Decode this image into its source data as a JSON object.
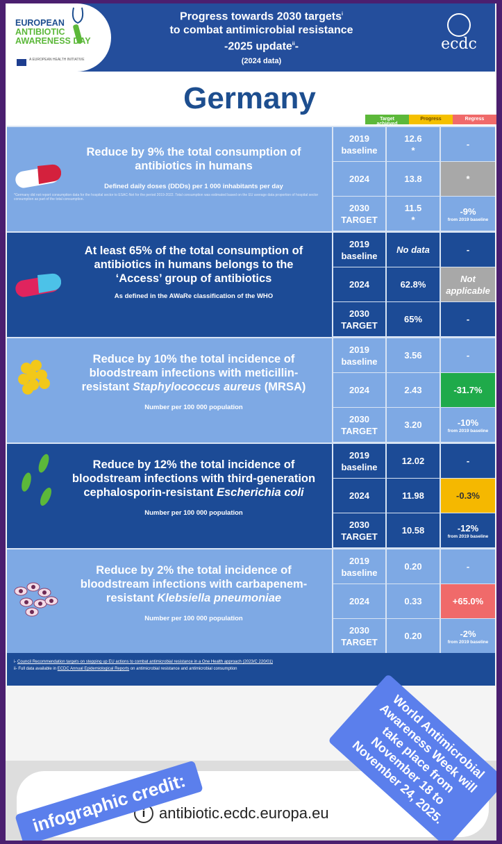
{
  "header": {
    "logo_lines": [
      "EUROPEAN",
      "ANTIBIOTIC",
      "AWARENESS DAY"
    ],
    "logo_sub": "A EUROPEAN HEALTH INITIATIVE",
    "title_line1": "Progress towards 2030 targets",
    "sup1": "i",
    "title_line2": "to combat antimicrobial resistance",
    "title_line3": "-2025 update",
    "sup2": "ii",
    "title_line3_end": "-",
    "title_line4": "(2024 data)",
    "ecdc_logo": "ecdc"
  },
  "country": "Germany",
  "legend": [
    {
      "label": "Target achieved",
      "color": "#5cb83a"
    },
    {
      "label": "Progress",
      "color": "#f5c000"
    },
    {
      "label": "Regress",
      "color": "#f06a6a"
    }
  ],
  "sections": [
    {
      "title": "Reduce by 9% the total consumption of antibiotics in humans",
      "unit": "Defined daily doses (DDDs) per 1 000 inhabitants per day",
      "note": "*Germany did not report consumption data for the hospital sector to ESAC-Net for the period 2019-2022. Total consumption was estimated based on the EU average data proportion of hospital sector consumption as part of the total consumption.",
      "icon": "pill-red-white-icon",
      "rows": [
        {
          "year": "2019",
          "year_sub": "baseline",
          "value": "12.6",
          "value_sub": "*",
          "change": "-",
          "change_sub": ""
        },
        {
          "year": "2024",
          "year_sub": "",
          "value": "13.8",
          "value_sub": "",
          "change": "*",
          "change_sub": "",
          "color": "#a8a8a8"
        },
        {
          "year": "2030",
          "year_sub": "TARGET",
          "value": "11.5",
          "value_sub": "*",
          "change": "-9%",
          "change_sub": "from 2019 baseline"
        }
      ]
    },
    {
      "title": "At least 65% of the total consumption of antibiotics in humans belongs to the ‘Access’ group of antibiotics",
      "unit": "As defined in the AWaRe classification of the WHO",
      "icon": "pill-blue-red-icon",
      "rows": [
        {
          "year": "2019",
          "year_sub": "baseline",
          "value": "No data",
          "value_sub": "",
          "change": "-",
          "change_sub": ""
        },
        {
          "year": "2024",
          "year_sub": "",
          "value": "62.8%",
          "value_sub": "",
          "change": "Not applicable",
          "change_sub": "",
          "color": "#a8a8a8"
        },
        {
          "year": "2030",
          "year_sub": "TARGET",
          "value": "65%",
          "value_sub": "",
          "change": "-",
          "change_sub": ""
        }
      ]
    },
    {
      "title_pre": "Reduce by 10% the total incidence of bloodstream infections with meticillin-resistant ",
      "title_ital": "Staphylococcus aureus",
      "title_post": " (MRSA)",
      "unit": "Number per 100 000 population",
      "icon": "staphylococcus-icon",
      "rows": [
        {
          "year": "2019",
          "year_sub": "baseline",
          "value": "3.56",
          "value_sub": "",
          "change": "-",
          "change_sub": ""
        },
        {
          "year": "2024",
          "year_sub": "",
          "value": "2.43",
          "value_sub": "",
          "change": "-31.7%",
          "change_sub": "",
          "color": "#1faa4a"
        },
        {
          "year": "2030",
          "year_sub": "TARGET",
          "value": "3.20",
          "value_sub": "",
          "change": "-10%",
          "change_sub": "from 2019 baseline"
        }
      ]
    },
    {
      "title_pre": "Reduce by 12% the total incidence of bloodstream infections with third-generation cephalosporin-resistant ",
      "title_ital": "Escherichia coli",
      "title_post": "",
      "unit": "Number per 100 000 population",
      "icon": "e-coli-icon",
      "rows": [
        {
          "year": "2019",
          "year_sub": "baseline",
          "value": "12.02",
          "value_sub": "",
          "change": "-",
          "change_sub": ""
        },
        {
          "year": "2024",
          "year_sub": "",
          "value": "11.98",
          "value_sub": "",
          "change": "-0.3%",
          "change_sub": "",
          "color": "#f5b800"
        },
        {
          "year": "2030",
          "year_sub": "TARGET",
          "value": "10.58",
          "value_sub": "",
          "change": "-12%",
          "change_sub": "from 2019 baseline"
        }
      ]
    },
    {
      "title_pre": "Reduce by 2% the total incidence of bloodstream infections with carbapenem-resistant ",
      "title_ital": "Klebsiella pneumoniae",
      "title_post": "",
      "unit": "Number per 100 000 population",
      "icon": "klebsiella-icon",
      "rows": [
        {
          "year": "2019",
          "year_sub": "baseline",
          "value": "0.20",
          "value_sub": "",
          "change": "-",
          "change_sub": ""
        },
        {
          "year": "2024",
          "year_sub": "",
          "value": "0.33",
          "value_sub": "",
          "change": "+65.0%",
          "change_sub": "",
          "color": "#f06a6a"
        },
        {
          "year": "2030",
          "year_sub": "TARGET",
          "value": "0.20",
          "value_sub": "",
          "change": "-2%",
          "change_sub": "from 2019 baseline"
        }
      ]
    }
  ],
  "footer": {
    "fn1_marker": "i-",
    "fn1_link": "Council Recommendation targets on stepping up EU actions to combat antimicrobial resistance in a One Health approach (2023/C 220/01)",
    "fn2_marker": "ii-",
    "fn2_pre": "Full data available in ",
    "fn2_link": "ECDC Annual Epidemiological Reports",
    "fn2_post": " on antimicrobial resistance and antimicrobial consumption"
  },
  "browser": {
    "url": "antibiotic.ecdc.europa.eu"
  },
  "stickers": {
    "credit": "infographic credit:",
    "week": "World Antimicrobial Awareness Week will take place from November 18 to November 24, 2025."
  }
}
